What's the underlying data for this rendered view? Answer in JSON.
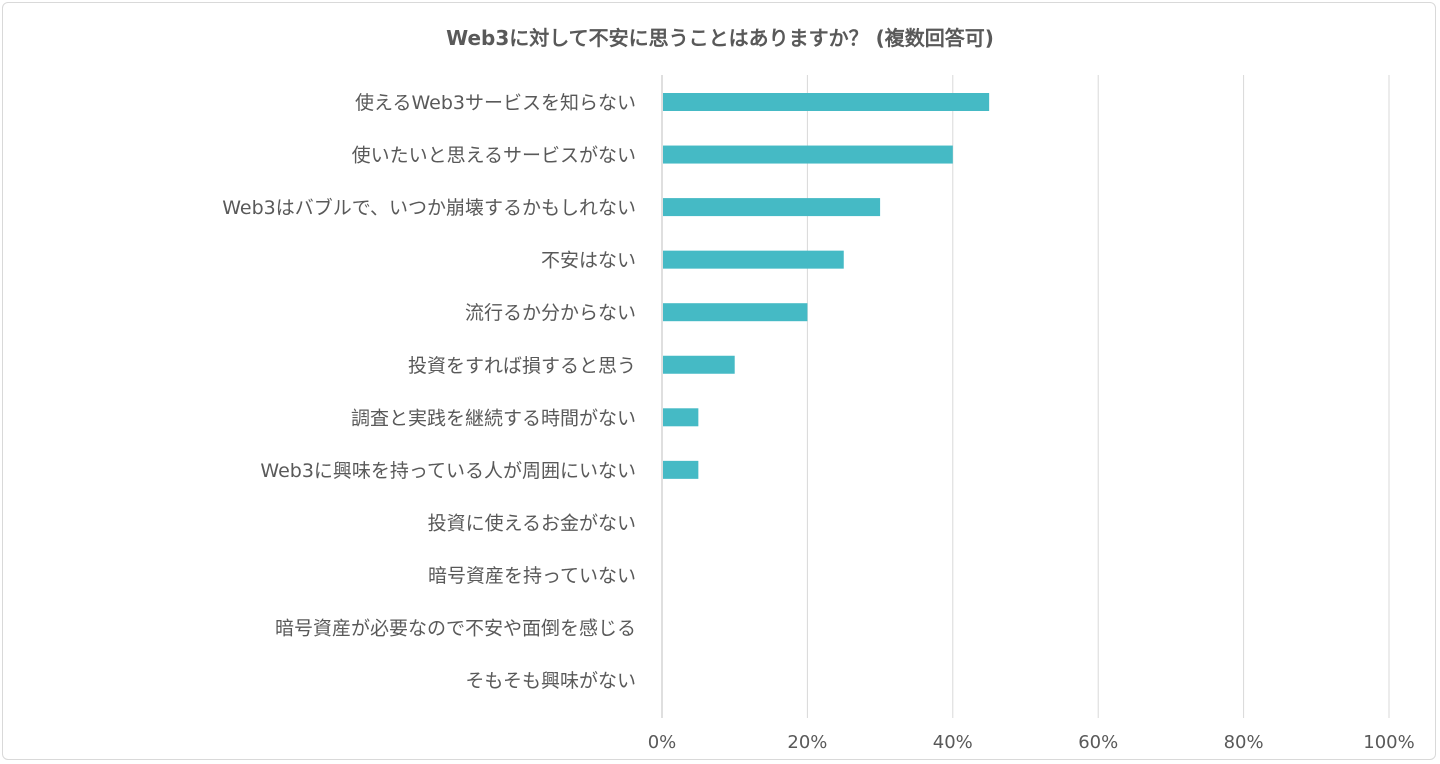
{
  "chart_data": {
    "type": "bar",
    "orientation": "horizontal",
    "title": "Web3に対して不安に思うことはありますか？ (複数回答可)",
    "categories": [
      "使えるWeb3サービスを知らない",
      "使いたいと思えるサービスがない",
      "Web3はバブルで、いつか崩壊するかもしれない",
      "不安はない",
      "流行るか分からない",
      "投資をすれば損すると思う",
      "調査と実践を継続する時間がない",
      "Web3に興味を持っている人が周囲にいない",
      "投資に使えるお金がない",
      "暗号資産を持っていない",
      "暗号資産が必要なので不安や面倒を感じる",
      "そもそも興味がない"
    ],
    "values": [
      45,
      40,
      30,
      25,
      20,
      10,
      5,
      5,
      0,
      0,
      0,
      0
    ],
    "xlabel": "",
    "ylabel": "",
    "xlim": [
      0,
      100
    ],
    "xticks": [
      "0%",
      "20%",
      "40%",
      "60%",
      "80%",
      "100%"
    ],
    "xtick_values": [
      0,
      20,
      40,
      60,
      80,
      100
    ],
    "grid": true,
    "legend": "none",
    "bar_color": "#45BAC5",
    "grid_color": "#d9d9d9"
  }
}
